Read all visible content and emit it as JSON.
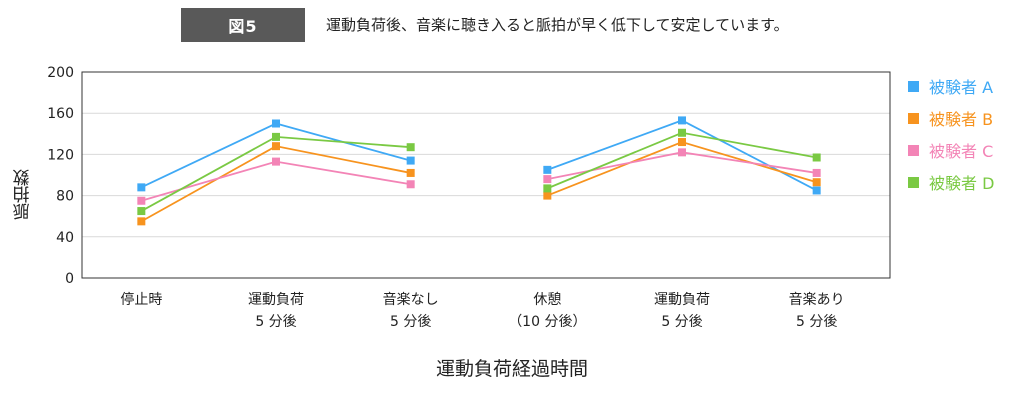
{
  "header": {
    "badge": "図5",
    "caption": "運動負荷後、音楽に聴き入ると脈拍が早く低下して安定しています。"
  },
  "chart_data": {
    "type": "line",
    "title": "",
    "xlabel": "運動負荷経過時間",
    "ylabel": "脈拍数",
    "ylim": [
      0,
      200
    ],
    "yticks": [
      0,
      40,
      80,
      120,
      160,
      200
    ],
    "grid": true,
    "legend_position": "right",
    "categories": [
      [
        "停止時"
      ],
      [
        "運動負荷",
        "5 分後"
      ],
      [
        "音楽なし",
        "5 分後"
      ],
      [
        "休憩",
        "（10 分後）"
      ],
      [
        "運動負荷",
        "5 分後"
      ],
      [
        "音楽あり",
        "5 分後"
      ]
    ],
    "segments": [
      [
        0,
        1,
        2
      ],
      [
        3,
        4,
        5
      ]
    ],
    "series": [
      {
        "name": "被験者 A",
        "color": "#3fa9f5",
        "values": [
          88,
          150,
          114,
          105,
          153,
          85
        ]
      },
      {
        "name": "被験者 B",
        "color": "#f7931e",
        "values": [
          55,
          128,
          102,
          80,
          132,
          93
        ]
      },
      {
        "name": "被験者 C",
        "color": "#f384b6",
        "values": [
          75,
          113,
          91,
          96,
          122,
          102
        ]
      },
      {
        "name": "被験者 D",
        "color": "#7ac943",
        "values": [
          65,
          137,
          127,
          87,
          141,
          117
        ]
      }
    ]
  }
}
